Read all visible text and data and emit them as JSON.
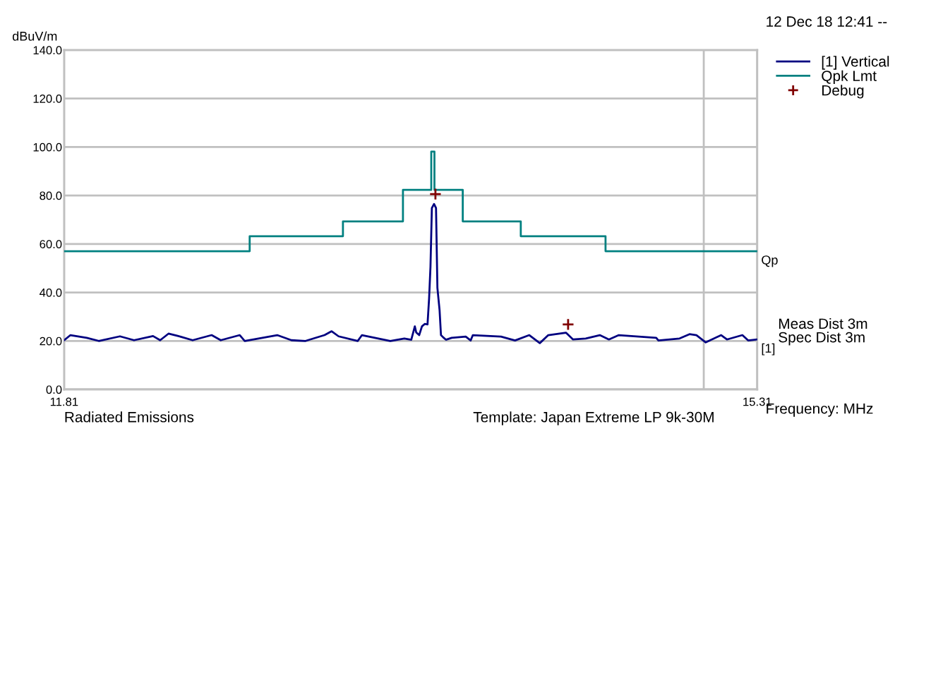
{
  "chart_data": {
    "type": "line",
    "ylabel": "dBuV/m",
    "xlabel": "Frequency: MHz",
    "annotations": [
      "12 Dec 18 12:41 --",
      "Meas Dist 3m",
      "Spec Dist 3m",
      "Radiated Emissions",
      "Template: Japan Extreme LP 9k-30M",
      {
        "text": "Qp",
        "x": 15.31,
        "y": 57
      },
      {
        "text": "[1]",
        "x": 15.31,
        "y": 20.6
      }
    ],
    "xlim": [
      11.81,
      15.31
    ],
    "xticks": [
      11.81,
      {
        "value": 15.04,
        "label": null
      },
      15.31
    ],
    "ylim": [
      0,
      140
    ],
    "yticks": [
      {
        "value": 0,
        "label": "0.0"
      },
      {
        "value": 20,
        "label": "20.0"
      },
      {
        "value": 40,
        "label": "40.0"
      },
      {
        "value": 60,
        "label": "60.0"
      },
      {
        "value": 80,
        "label": "80.0"
      },
      {
        "value": 100,
        "label": "100.0"
      },
      {
        "value": 120,
        "label": "120.0"
      },
      {
        "value": 140,
        "label": "140.0"
      }
    ],
    "grid": true,
    "legend": "top right",
    "line_style": "solid",
    "series": [
      {
        "name": "[1] Vertical",
        "color": "#000080",
        "x": [
          11.81,
          11.842,
          11.924,
          11.985,
          12.092,
          12.163,
          12.259,
          12.295,
          12.337,
          12.387,
          12.459,
          12.555,
          12.601,
          12.697,
          12.722,
          12.886,
          12.958,
          13.029,
          13.125,
          13.161,
          13.196,
          13.293,
          13.314,
          13.457,
          13.528,
          13.563,
          13.581,
          13.588,
          13.603,
          13.617,
          13.631,
          13.645,
          13.653,
          13.66,
          13.667,
          13.678,
          13.688,
          13.695,
          13.706,
          13.713,
          13.724,
          13.738,
          13.767,
          13.838,
          13.863,
          13.874,
          14.016,
          14.087,
          14.159,
          14.212,
          14.255,
          14.344,
          14.38,
          14.444,
          14.515,
          14.561,
          14.611,
          14.8,
          14.811,
          14.918,
          14.968,
          15.003,
          15.05,
          15.128,
          15.157,
          15.235,
          15.264,
          15.31
        ],
        "values": [
          20.3,
          22.4,
          21.3,
          20,
          21.9,
          20.3,
          22,
          20.3,
          23,
          22,
          20.3,
          22.4,
          20.3,
          22.4,
          20,
          22.4,
          20.3,
          20,
          22.4,
          24,
          21.9,
          20,
          22.4,
          20,
          21,
          20.5,
          26,
          23.5,
          22.4,
          26,
          27,
          26.8,
          37.5,
          50.6,
          74.8,
          76.5,
          74.8,
          41.9,
          32.6,
          22.4,
          21.5,
          20.5,
          21.3,
          21.8,
          20.2,
          22.4,
          21.8,
          20.2,
          22.4,
          19.1,
          22.4,
          23.4,
          20.6,
          21,
          22.4,
          20.6,
          22.4,
          21.3,
          20.2,
          21,
          22.8,
          22.4,
          19.4,
          22.4,
          20.6,
          22.4,
          20.2,
          20.6
        ]
      },
      {
        "name": "Qpk Lmt",
        "color": "#008080",
        "x": [
          11.81,
          12.747,
          12.747,
          13.218,
          13.218,
          13.521,
          13.521,
          13.664,
          13.664,
          13.68,
          13.68,
          13.823,
          13.823,
          14.116,
          14.116,
          14.544,
          14.544,
          15.31
        ],
        "values": [
          57,
          57,
          63.2,
          63.2,
          69.3,
          69.3,
          82.3,
          82.3,
          98.1,
          98.1,
          82.3,
          82.3,
          69.3,
          69.3,
          63.2,
          63.2,
          57,
          57
        ]
      },
      {
        "name": "Debug",
        "color": "#800000",
        "type": "scatter",
        "marker": "cross",
        "x": [
          13.685,
          14.355
        ],
        "values": [
          80.6,
          26.8
        ]
      }
    ]
  }
}
